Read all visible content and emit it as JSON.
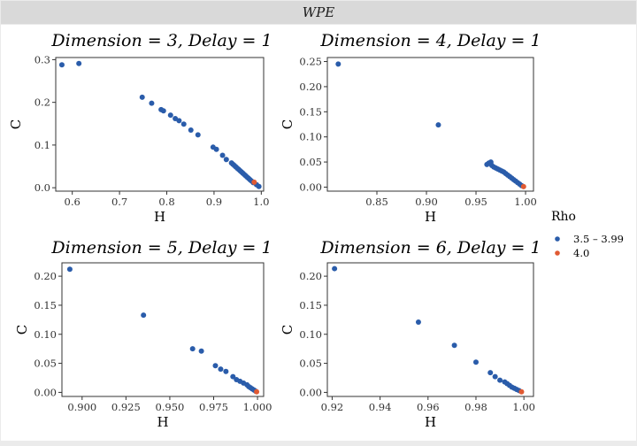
{
  "strip": {
    "label": "WPE"
  },
  "legend": {
    "title": "Rho",
    "entries": [
      {
        "label": "3.5 – 3.99",
        "color": "#2a5caa"
      },
      {
        "label": "4.0",
        "color": "#e05a33"
      }
    ]
  },
  "chart_data": [
    {
      "type": "scatter",
      "title": "Dimension = 3, Delay = 1",
      "xlabel": "H",
      "ylabel": "C",
      "xlim": [
        0.565,
        1.005
      ],
      "ylim": [
        -0.008,
        0.305
      ],
      "xticks": [
        0.6,
        0.7,
        0.8,
        0.9,
        1.0
      ],
      "xtick_labels": [
        "0.6",
        "0.7",
        "0.8",
        "0.9",
        "1.0"
      ],
      "yticks": [
        0.0,
        0.1,
        0.2,
        0.3
      ],
      "ytick_labels": [
        "0.0",
        "0.1",
        "0.2",
        "0.3"
      ],
      "grid": false,
      "series": [
        {
          "legend": "3.5 – 3.99",
          "points": [
            [
              0.578,
              0.288
            ],
            [
              0.614,
              0.291
            ],
            [
              0.748,
              0.212
            ],
            [
              0.768,
              0.198
            ],
            [
              0.788,
              0.183
            ],
            [
              0.793,
              0.18
            ],
            [
              0.808,
              0.17
            ],
            [
              0.818,
              0.162
            ],
            [
              0.826,
              0.157
            ],
            [
              0.836,
              0.149
            ],
            [
              0.851,
              0.135
            ],
            [
              0.866,
              0.124
            ],
            [
              0.898,
              0.095
            ],
            [
              0.905,
              0.09
            ],
            [
              0.918,
              0.076
            ],
            [
              0.926,
              0.066
            ],
            [
              0.937,
              0.058
            ],
            [
              0.94,
              0.055
            ],
            [
              0.943,
              0.052
            ],
            [
              0.946,
              0.049
            ],
            [
              0.949,
              0.046
            ],
            [
              0.952,
              0.043
            ],
            [
              0.955,
              0.04
            ],
            [
              0.958,
              0.037
            ],
            [
              0.961,
              0.034
            ],
            [
              0.964,
              0.031
            ],
            [
              0.967,
              0.028
            ],
            [
              0.97,
              0.025
            ],
            [
              0.973,
              0.022
            ],
            [
              0.976,
              0.019
            ],
            [
              0.979,
              0.016
            ],
            [
              0.983,
              0.012
            ],
            [
              0.99,
              0.007
            ],
            [
              0.995,
              0.003
            ]
          ]
        },
        {
          "legend": "4.0",
          "points": [
            [
              0.985,
              0.013
            ]
          ]
        }
      ]
    },
    {
      "type": "scatter",
      "title": "Dimension = 4, Delay = 1",
      "xlabel": "H",
      "ylabel": "C",
      "xlim": [
        0.8,
        1.008
      ],
      "ylim": [
        -0.008,
        0.258
      ],
      "xticks": [
        0.85,
        0.9,
        0.95,
        1.0
      ],
      "xtick_labels": [
        "0.85",
        "0.90",
        "0.95",
        "1.00"
      ],
      "yticks": [
        0.0,
        0.05,
        0.1,
        0.15,
        0.2,
        0.25
      ],
      "ytick_labels": [
        "0.00",
        "0.05",
        "0.10",
        "0.15",
        "0.20",
        "0.25"
      ],
      "grid": false,
      "series": [
        {
          "legend": "3.5 – 3.99",
          "points": [
            [
              0.811,
              0.245
            ],
            [
              0.912,
              0.124
            ],
            [
              0.961,
              0.045
            ],
            [
              0.963,
              0.048
            ],
            [
              0.965,
              0.05
            ],
            [
              0.966,
              0.043
            ],
            [
              0.968,
              0.04
            ],
            [
              0.97,
              0.038
            ],
            [
              0.972,
              0.036
            ],
            [
              0.974,
              0.034
            ],
            [
              0.976,
              0.032
            ],
            [
              0.978,
              0.03
            ],
            [
              0.98,
              0.027
            ],
            [
              0.982,
              0.024
            ],
            [
              0.984,
              0.021
            ],
            [
              0.986,
              0.018
            ],
            [
              0.988,
              0.015
            ],
            [
              0.99,
              0.012
            ],
            [
              0.992,
              0.009
            ],
            [
              0.994,
              0.006
            ],
            [
              0.996,
              0.003
            ]
          ]
        },
        {
          "legend": "4.0",
          "points": [
            [
              0.998,
              0.001
            ]
          ]
        }
      ]
    },
    {
      "type": "scatter",
      "title": "Dimension = 5, Delay = 1",
      "xlabel": "H",
      "ylabel": "C",
      "xlim": [
        0.8885,
        1.0035
      ],
      "ylim": [
        -0.007,
        0.223
      ],
      "xticks": [
        0.9,
        0.925,
        0.95,
        0.975,
        1.0
      ],
      "xtick_labels": [
        "0.900",
        "0.925",
        "0.950",
        "0.975",
        "1.000"
      ],
      "yticks": [
        0.0,
        0.05,
        0.1,
        0.15,
        0.2
      ],
      "ytick_labels": [
        "0.00",
        "0.05",
        "0.10",
        "0.15",
        "0.20"
      ],
      "grid": false,
      "series": [
        {
          "legend": "3.5 – 3.99",
          "points": [
            [
              0.893,
              0.212
            ],
            [
              0.935,
              0.133
            ],
            [
              0.963,
              0.075
            ],
            [
              0.968,
              0.071
            ],
            [
              0.976,
              0.046
            ],
            [
              0.979,
              0.04
            ],
            [
              0.982,
              0.036
            ],
            [
              0.986,
              0.027
            ],
            [
              0.988,
              0.022
            ],
            [
              0.99,
              0.019
            ],
            [
              0.992,
              0.016
            ],
            [
              0.994,
              0.013
            ],
            [
              0.995,
              0.01
            ],
            [
              0.996,
              0.008
            ],
            [
              0.997,
              0.006
            ],
            [
              0.998,
              0.004
            ],
            [
              0.999,
              0.002
            ]
          ]
        },
        {
          "legend": "4.0",
          "points": [
            [
              0.9995,
              0.001
            ]
          ]
        }
      ]
    },
    {
      "type": "scatter",
      "title": "Dimension = 6, Delay = 1",
      "xlabel": "H",
      "ylabel": "C",
      "xlim": [
        0.918,
        1.004
      ],
      "ylim": [
        -0.007,
        0.223
      ],
      "xticks": [
        0.92,
        0.94,
        0.96,
        0.98,
        1.0
      ],
      "xtick_labels": [
        "0.92",
        "0.94",
        "0.96",
        "0.98",
        "1.00"
      ],
      "yticks": [
        0.0,
        0.05,
        0.1,
        0.15,
        0.2
      ],
      "ytick_labels": [
        "0.00",
        "0.05",
        "0.10",
        "0.15",
        "0.20"
      ],
      "grid": false,
      "series": [
        {
          "legend": "3.5 – 3.99",
          "points": [
            [
              0.921,
              0.213
            ],
            [
              0.956,
              0.121
            ],
            [
              0.971,
              0.081
            ],
            [
              0.98,
              0.052
            ],
            [
              0.986,
              0.034
            ],
            [
              0.988,
              0.027
            ],
            [
              0.99,
              0.021
            ],
            [
              0.992,
              0.018
            ],
            [
              0.993,
              0.015
            ],
            [
              0.994,
              0.012
            ],
            [
              0.995,
              0.009
            ],
            [
              0.996,
              0.007
            ],
            [
              0.997,
              0.005
            ],
            [
              0.998,
              0.003
            ]
          ]
        },
        {
          "legend": "4.0",
          "points": [
            [
              0.999,
              0.001
            ]
          ]
        }
      ]
    }
  ]
}
